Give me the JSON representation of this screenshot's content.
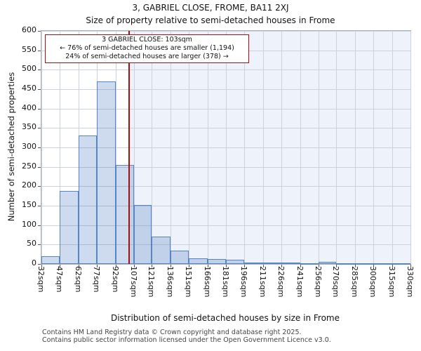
{
  "page": {
    "title": "3, GABRIEL CLOSE, FROME, BA11 2XJ",
    "subtitle": "Size of property relative to semi-detached houses in Frome"
  },
  "chart_data": {
    "type": "bar",
    "title": "3, GABRIEL CLOSE, FROME, BA11 2XJ",
    "subtitle": "Size of property relative to semi-detached houses in Frome",
    "xlabel": "Distribution of semi-detached houses by size in Frome",
    "ylabel": "Number of semi-detached properties",
    "ylim": [
      0,
      600
    ],
    "ytick_step": 50,
    "grid": true,
    "bin_edges_sqm": [
      32,
      47,
      62,
      77,
      92,
      107,
      121,
      136,
      151,
      166,
      181,
      196,
      211,
      226,
      241,
      256,
      270,
      285,
      300,
      315,
      330
    ],
    "x_tick_labels": [
      "32sqm",
      "47sqm",
      "62sqm",
      "77sqm",
      "92sqm",
      "107sqm",
      "121sqm",
      "136sqm",
      "151sqm",
      "166sqm",
      "181sqm",
      "196sqm",
      "211sqm",
      "226sqm",
      "241sqm",
      "256sqm",
      "270sqm",
      "285sqm",
      "300sqm",
      "315sqm",
      "330sqm"
    ],
    "values": [
      20,
      188,
      331,
      470,
      255,
      152,
      70,
      34,
      15,
      13,
      11,
      3,
      4,
      4,
      2,
      5,
      2,
      2,
      2,
      2
    ],
    "marker": {
      "value_sqm": 103,
      "lines": [
        "3 GABRIEL CLOSE: 103sqm",
        "← 76% of semi-detached houses are smaller (1,194)",
        "24% of semi-detached houses are larger (378) →"
      ]
    },
    "colors": {
      "bar_fill": "rgba(79,123,191,0.28)",
      "bar_edge": "#5585c5",
      "marker_red": "#aa0f0f",
      "shade_bg": "#eef3fb",
      "grid": "#ccd2dc",
      "spine": "#aeb4be"
    },
    "legend": null
  },
  "footer": {
    "line1": "Contains HM Land Registry data © Crown copyright and database right 2025.",
    "line2": "Contains public sector information licensed under the Open Government Licence v3.0."
  }
}
